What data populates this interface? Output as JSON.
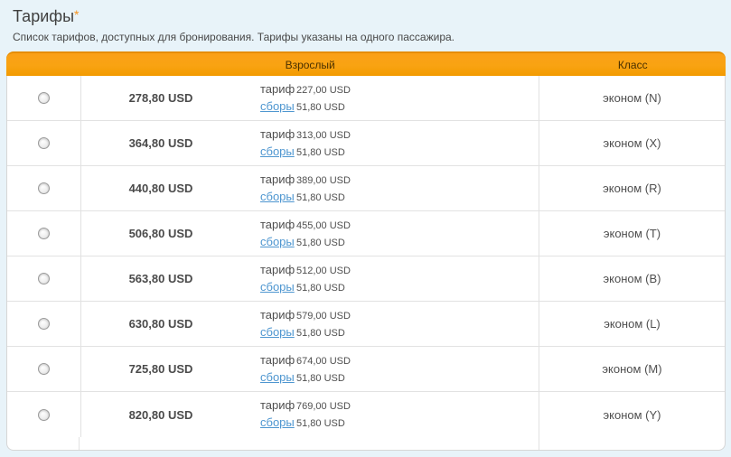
{
  "page": {
    "title": "Тарифы",
    "required_marker": "*",
    "subtitle": "Список тарифов, доступных для бронирования. Тарифы указаны на одного пассажира."
  },
  "table": {
    "header": {
      "adult": "Взрослый",
      "class": "Класс"
    },
    "labels": {
      "fare": "тариф",
      "fees": "сборы"
    },
    "rows": [
      {
        "total": "278,80 USD",
        "fare": "227,00 USD",
        "fees": "51,80 USD",
        "class": "эконом (N)"
      },
      {
        "total": "364,80 USD",
        "fare": "313,00 USD",
        "fees": "51,80 USD",
        "class": "эконом (X)"
      },
      {
        "total": "440,80 USD",
        "fare": "389,00 USD",
        "fees": "51,80 USD",
        "class": "эконом (R)"
      },
      {
        "total": "506,80 USD",
        "fare": "455,00 USD",
        "fees": "51,80 USD",
        "class": "эконом (T)"
      },
      {
        "total": "563,80 USD",
        "fare": "512,00 USD",
        "fees": "51,80 USD",
        "class": "эконом (B)"
      },
      {
        "total": "630,80 USD",
        "fare": "579,00 USD",
        "fees": "51,80 USD",
        "class": "эконом (L)"
      },
      {
        "total": "725,80 USD",
        "fare": "674,00 USD",
        "fees": "51,80 USD",
        "class": "эконом (M)"
      },
      {
        "total": "820,80 USD",
        "fare": "769,00 USD",
        "fees": "51,80 USD",
        "class": "эконом (Y)"
      }
    ],
    "colors": {
      "page_bg": "#e8f3f9",
      "header_bg": "#f9a312",
      "header_text": "#4a3000",
      "link_blue": "#4e96d0",
      "accent_orange": "#f7941e"
    }
  }
}
